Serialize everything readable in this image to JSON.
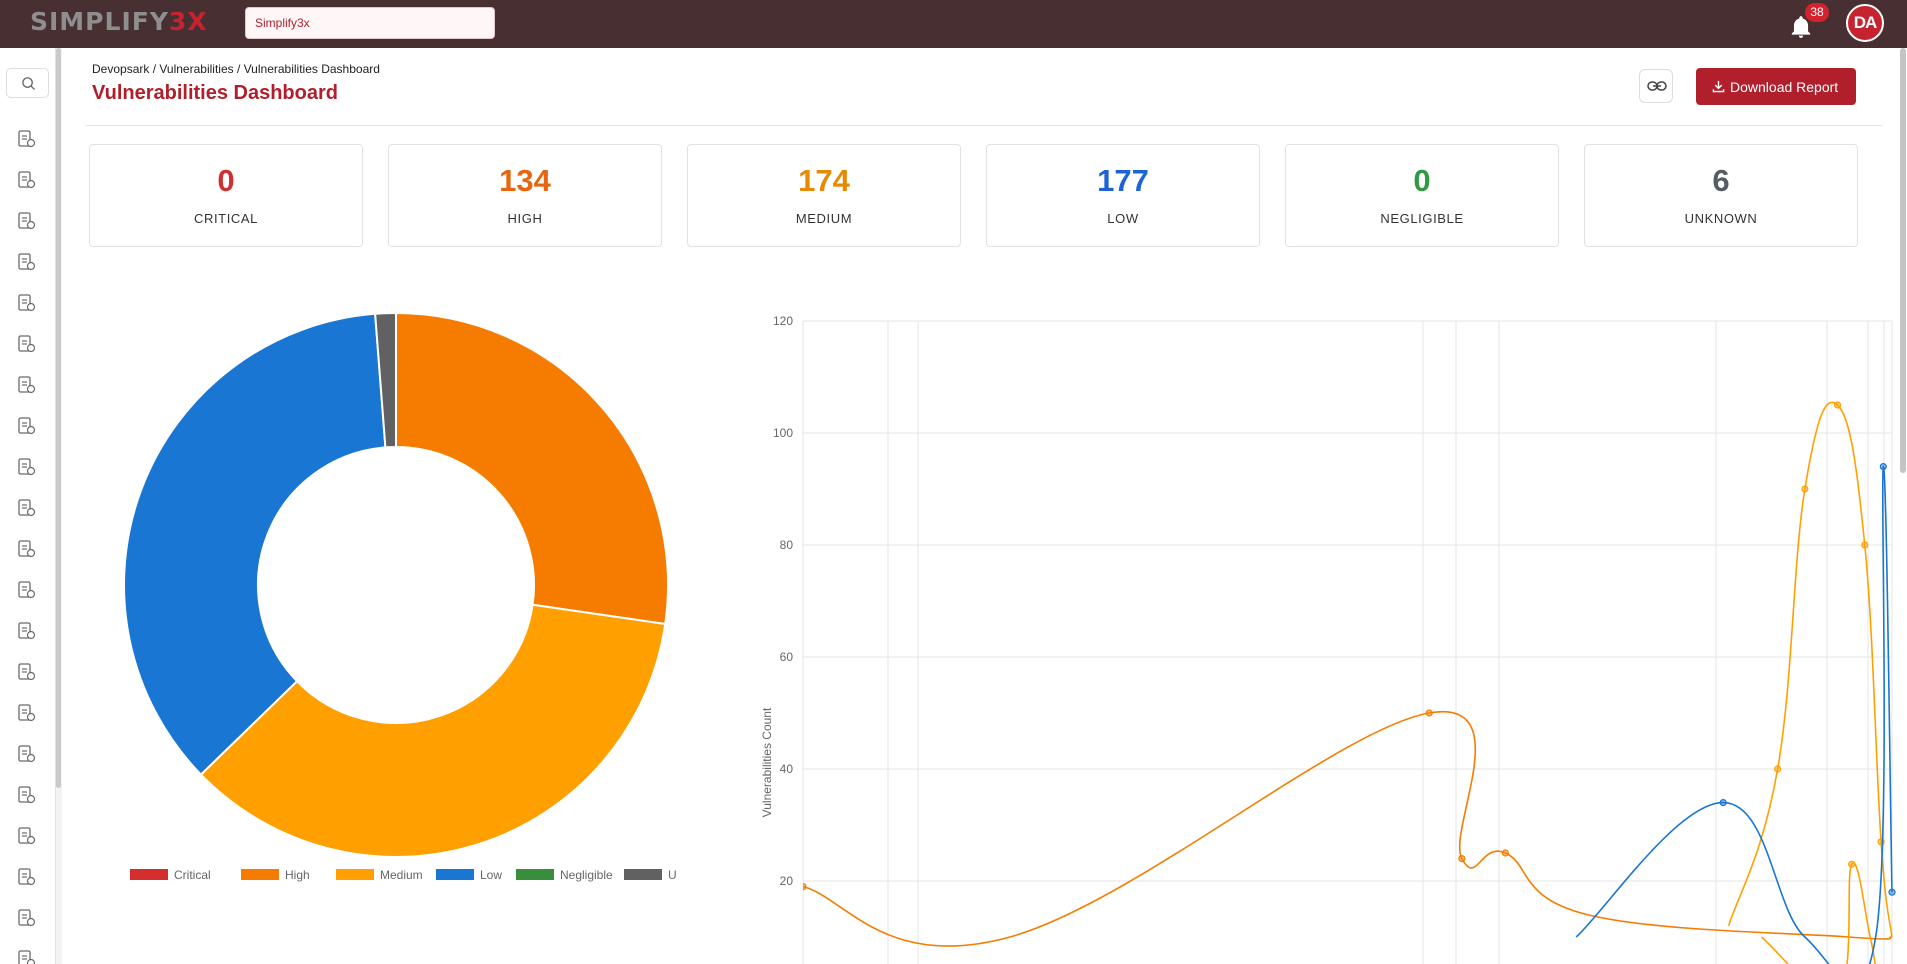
{
  "header": {
    "logo_primary": "SIMPLIFY",
    "logo_accent": "3X",
    "search_value": "Simplify3x",
    "notification_count": "38",
    "avatar_initials": "DA"
  },
  "page": {
    "breadcrumb": "Devopsark / Vulnerabilities / Vulnerabilities Dashboard",
    "title": "Vulnerabilities Dashboard",
    "download_label": "Download Report"
  },
  "summary": [
    {
      "count": "0",
      "label": "CRITICAL",
      "color": "#d32f2f"
    },
    {
      "count": "134",
      "label": "HIGH",
      "color": "#e8650f"
    },
    {
      "count": "174",
      "label": "MEDIUM",
      "color": "#e68a00"
    },
    {
      "count": "177",
      "label": "LOW",
      "color": "#1e63d6"
    },
    {
      "count": "0",
      "label": "NEGLIGIBLE",
      "color": "#2e9a44"
    },
    {
      "count": "6",
      "label": "UNKNOWN",
      "color": "#555e68"
    }
  ],
  "sidebar_icons": [
    "pipeline-icon",
    "network-icon",
    "document-icon",
    "rocket-icon",
    "report-search-icon",
    "document-icon",
    "monitor-icon",
    "document-icon",
    "cloud-gear-icon",
    "document-icon",
    "shield-icon",
    "document-icon",
    "globe-icon",
    "document-icon",
    "users-icon",
    "id-card-icon",
    "settings-icon",
    "dashboard-icon",
    "hierarchy-icon",
    "server-icon",
    "document-icon"
  ],
  "chart_data": [
    {
      "type": "pie",
      "variant": "doughnut",
      "labels": [
        "Critical",
        "High",
        "Medium",
        "Low",
        "Negligible",
        "Unknown"
      ],
      "values": [
        0,
        134,
        174,
        177,
        0,
        6
      ],
      "colors": [
        "#d32f2f",
        "#f57c00",
        "#ffa000",
        "#1976d2",
        "#388e3c",
        "#616161"
      ],
      "legend": "bottom"
    },
    {
      "type": "line",
      "ylabel": "Vulnerabilities Count",
      "ylim": [
        0,
        120
      ],
      "yticks": [
        20,
        40,
        60,
        80,
        100,
        120
      ],
      "xlim": [
        0,
        1000
      ],
      "grid": true,
      "series": [
        {
          "color": "#f57c00",
          "points": [
            [
              0,
              19
            ],
            [
              190,
              10
            ],
            [
              575,
              50
            ],
            [
              605,
              24
            ],
            [
              645,
              25
            ],
            [
              720,
              14
            ],
            [
              960,
              10
            ],
            [
              1000,
              10
            ]
          ]
        },
        {
          "color": "#ffa000",
          "points": [
            [
              880,
              10
            ],
            [
              950,
              0
            ],
            [
              963,
              23
            ],
            [
              980,
              10
            ],
            [
              990,
              0
            ],
            [
              1000,
              0
            ]
          ]
        },
        {
          "color": "#ffa000",
          "points": [
            [
              850,
              12
            ],
            [
              895,
              40
            ],
            [
              920,
              90
            ],
            [
              950,
              105
            ],
            [
              975,
              80
            ],
            [
              990,
              27
            ],
            [
              1000,
              10
            ]
          ]
        },
        {
          "color": "#1976d2",
          "points": [
            [
              710,
              10
            ],
            [
              845,
              34
            ],
            [
              920,
              10
            ],
            [
              985,
              10
            ],
            [
              992,
              94
            ],
            [
              1000,
              18
            ]
          ]
        }
      ]
    }
  ]
}
